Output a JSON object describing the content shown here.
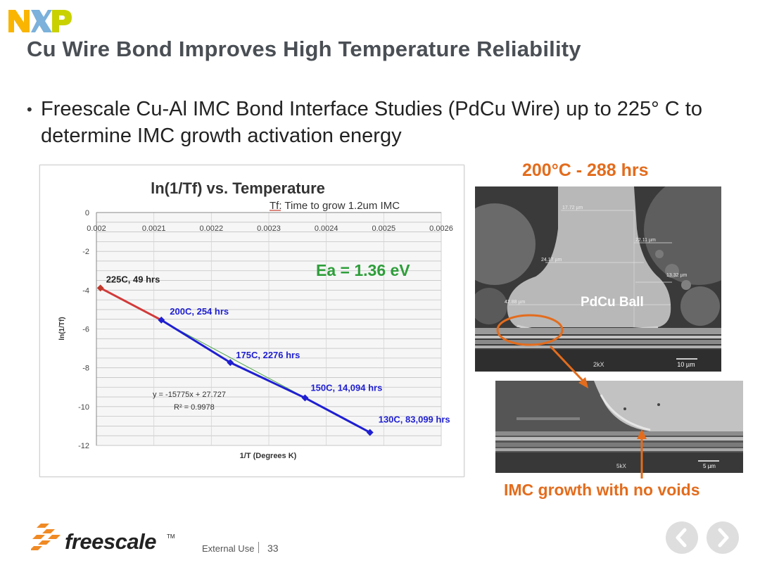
{
  "header": {
    "logo_text": "NXP",
    "title": "Cu Wire Bond Improves High Temperature Reliability"
  },
  "bullet": {
    "text": "Freescale Cu-Al IMC Bond Interface Studies (PdCu Wire) up to 225° C to determine IMC growth activation energy"
  },
  "sem": {
    "title": "200°C - 288 hrs",
    "ball_label": "PdCu Ball",
    "caption": "IMC growth with no voids",
    "measure_labels": [
      "17.72 µm",
      "22.11 µm",
      "24.17 µm",
      "13.32 µm",
      "42.88 µm"
    ],
    "scale_text": "2kX",
    "scale_bar": "10 µm",
    "scale_text_2": "5kX",
    "scale_bar_2": "5 µm"
  },
  "footer": {
    "brand": "freescale",
    "tm": "TM",
    "label": "External Use",
    "page_number": "33"
  },
  "colors": {
    "accent": "#e36c1d",
    "series_blue": "#1f1fd1",
    "series_red": "#d23a3a",
    "ea_green": "#2e9e3a"
  },
  "icons": {
    "prev": "chevron-left-icon",
    "next": "chevron-right-icon"
  },
  "chart_data": {
    "type": "scatter",
    "title": "ln(1/Tf) vs. Temperature",
    "subtitle": "Tf: Time to grow 1.2um IMC",
    "xlabel": "1/T (Degrees K)",
    "ylabel": "ln(1/Tf)",
    "xlim": [
      0.002,
      0.0026
    ],
    "ylim": [
      -12,
      0
    ],
    "x_ticks": [
      "0.002",
      "0.0021",
      "0.0022",
      "0.0023",
      "0.0024",
      "0.0025",
      "0.0026"
    ],
    "y_ticks": [
      "0",
      "-2",
      "-4",
      "-6",
      "-8",
      "-10",
      "-12"
    ],
    "grid": true,
    "x_axis_position": "top",
    "series": [
      {
        "x": [
          0.002007,
          0.002113,
          0.002233,
          0.002363,
          0.002476
        ],
        "y": [
          -3.89,
          -5.54,
          -7.73,
          -9.55,
          -11.33
        ]
      }
    ],
    "point_labels": [
      "225C, 49 hrs",
      "200C, 254 hrs",
      "175C, 2276 hrs",
      "150C, 14,094 hrs",
      "130C, 83,099 hrs"
    ],
    "fit_equation": "y = -15775x + 27.727",
    "r_squared": "R² = 0.9978",
    "annotation": "Ea = 1.36 eV"
  }
}
